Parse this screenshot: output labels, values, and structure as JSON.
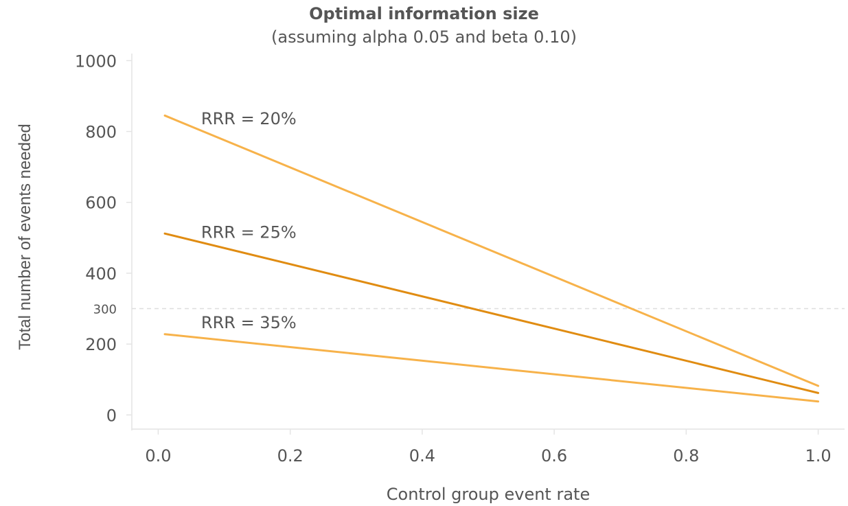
{
  "chart_data": {
    "type": "line",
    "title": "Optimal information size",
    "subtitle": "(assuming alpha 0.05 and beta 0.10)",
    "xlabel": "Control group event rate",
    "ylabel": "Total number of events needed",
    "xlim": [
      -0.04,
      1.04
    ],
    "ylim": [
      -40,
      1020
    ],
    "xticks": [
      "0.0",
      "0.2",
      "0.4",
      "0.6",
      "0.8",
      "1.0"
    ],
    "xtick_values": [
      0.0,
      0.2,
      0.4,
      0.6,
      0.8,
      1.0
    ],
    "yticks": [
      "0",
      "200",
      "400",
      "600",
      "800",
      "1000"
    ],
    "ytick_values": [
      0,
      200,
      400,
      600,
      800,
      1000
    ],
    "reference_line": {
      "y": 300,
      "label": "300",
      "style": "dashed",
      "color": "#dddddd"
    },
    "grid": false,
    "series": [
      {
        "name": "RRR = 20%",
        "color": "#f7b24a",
        "x": [
          0.01,
          1.0
        ],
        "y": [
          845,
          82
        ],
        "label_at": [
          0.065,
          820
        ]
      },
      {
        "name": "RRR = 25%",
        "color": "#e08c12",
        "x": [
          0.01,
          1.0
        ],
        "y": [
          512,
          62
        ],
        "label_at": [
          0.065,
          500
        ]
      },
      {
        "name": "RRR = 35%",
        "color": "#f7b24a",
        "x": [
          0.01,
          1.0
        ],
        "y": [
          228,
          38
        ],
        "label_at": [
          0.065,
          245
        ]
      }
    ]
  }
}
